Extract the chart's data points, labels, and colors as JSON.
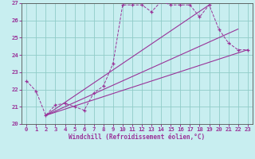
{
  "xlabel": "Windchill (Refroidissement éolien,°C)",
  "background_color": "#c8eef0",
  "grid_color": "#90ccc8",
  "line_color": "#993399",
  "xlim": [
    -0.5,
    23.5
  ],
  "ylim": [
    20,
    27
  ],
  "yticks": [
    20,
    21,
    22,
    23,
    24,
    25,
    26,
    27
  ],
  "xticks": [
    0,
    1,
    2,
    3,
    4,
    5,
    6,
    7,
    8,
    9,
    10,
    11,
    12,
    13,
    14,
    15,
    16,
    17,
    18,
    19,
    20,
    21,
    22,
    23
  ],
  "curve1_x": [
    0,
    1,
    2,
    3,
    4,
    5,
    6,
    7,
    8,
    9,
    10,
    11,
    12,
    13,
    14,
    15,
    16,
    17,
    18,
    19,
    20,
    21,
    22,
    23
  ],
  "curve1_y": [
    22.5,
    21.9,
    20.5,
    21.1,
    21.2,
    21.0,
    20.8,
    21.8,
    22.2,
    23.5,
    26.9,
    26.9,
    26.9,
    26.5,
    27.1,
    26.9,
    26.9,
    26.9,
    26.2,
    26.9,
    25.5,
    24.7,
    24.3,
    24.3
  ],
  "line1_x": [
    2,
    23
  ],
  "line1_y": [
    20.5,
    24.3
  ],
  "line2_x": [
    2,
    19
  ],
  "line2_y": [
    20.5,
    26.9
  ],
  "line3_x": [
    2,
    22
  ],
  "line3_y": [
    20.5,
    25.5
  ]
}
